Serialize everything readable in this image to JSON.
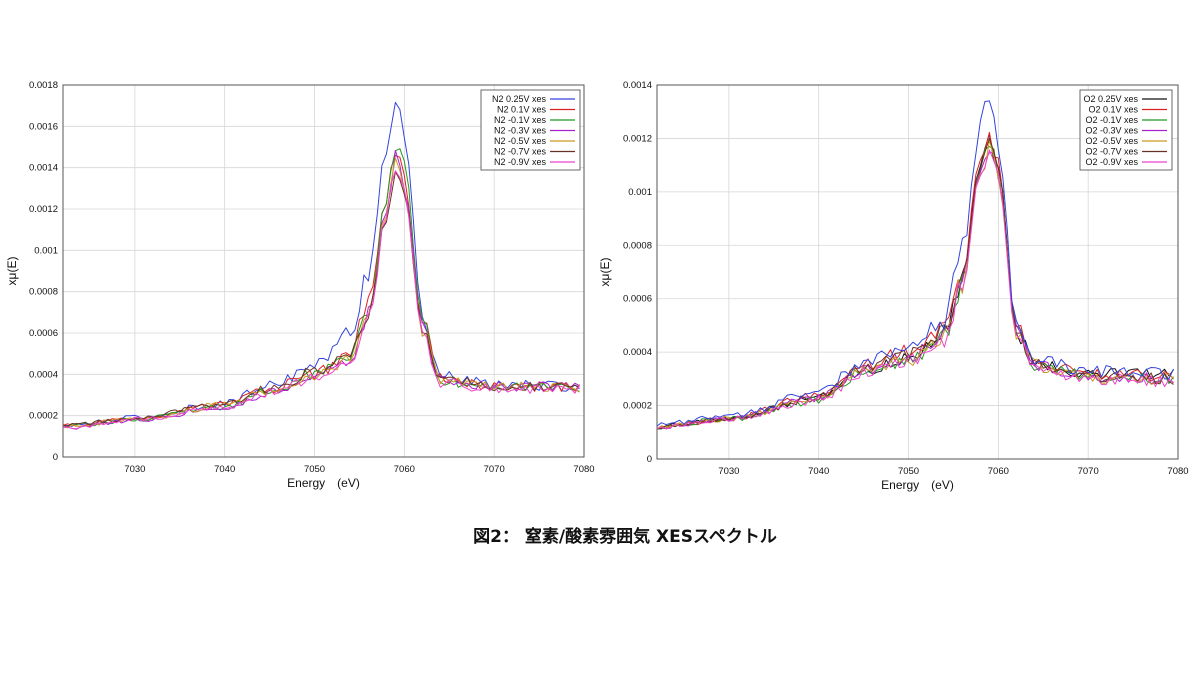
{
  "caption": "図2： 窒素/酸素雰囲気 XESスペクトル",
  "chart_data": [
    {
      "type": "line",
      "xlabel": "Energy　(eV)",
      "ylabel": "xμ(E)",
      "xlim": [
        7022,
        7080
      ],
      "ylim": [
        0,
        0.0018
      ],
      "x_ticks": [
        7030,
        7040,
        7050,
        7060,
        7070,
        7080
      ],
      "y_ticks": [
        0,
        0.0002,
        0.0004,
        0.0006,
        0.0008,
        0.001,
        0.0012,
        0.0014,
        0.0016,
        0.0018
      ],
      "x_tick_labels": [
        "7030",
        "7040",
        "7050",
        "7060",
        "7070",
        "7080"
      ],
      "y_tick_labels": [
        "0",
        "0.0002",
        "0.0004",
        "0.0006",
        "0.0008",
        "0.001",
        "0.0012",
        "0.0014",
        "0.0016",
        "0.0018"
      ],
      "grid": true,
      "legend_position": "top-right",
      "x": [
        7022,
        7030,
        7040,
        7045,
        7050,
        7054,
        7056,
        7058,
        7059,
        7060,
        7062,
        7064,
        7070,
        7079.5
      ],
      "series": [
        {
          "name": "N2 0.25V xes",
          "color": "#3344dd",
          "values": [
            0.00015,
            0.00019,
            0.00026,
            0.00035,
            0.00044,
            0.0006,
            0.0009,
            0.0015,
            0.00172,
            0.00155,
            0.0007,
            0.00039,
            0.00035,
            0.00034
          ]
        },
        {
          "name": "N2 0.1V xes",
          "color": "#dd2222",
          "values": [
            0.00015,
            0.00019,
            0.00025,
            0.00033,
            0.0004,
            0.0005,
            0.00075,
            0.00125,
            0.00148,
            0.00135,
            0.00065,
            0.00038,
            0.00034,
            0.00034
          ]
        },
        {
          "name": "N2 -0.1V xes",
          "color": "#229922",
          "values": [
            0.00015,
            0.00018,
            0.00024,
            0.00032,
            0.0004,
            0.00048,
            0.0007,
            0.00125,
            0.00152,
            0.0014,
            0.00065,
            0.00037,
            0.00034,
            0.00033
          ]
        },
        {
          "name": "N2 -0.3V xes",
          "color": "#aa22cc",
          "values": [
            0.00014,
            0.00018,
            0.00024,
            0.00031,
            0.00039,
            0.00047,
            0.00068,
            0.0012,
            0.00145,
            0.00132,
            0.00062,
            0.00037,
            0.00034,
            0.00034
          ]
        },
        {
          "name": "N2 -0.5V xes",
          "color": "#cc9922",
          "values": [
            0.00015,
            0.00018,
            0.00025,
            0.00032,
            0.00039,
            0.00047,
            0.00068,
            0.00118,
            0.00143,
            0.0013,
            0.00062,
            0.00037,
            0.00034,
            0.00034
          ]
        },
        {
          "name": "N2 -0.7V xes",
          "color": "#663322",
          "values": [
            0.00015,
            0.00019,
            0.00025,
            0.00033,
            0.00041,
            0.00049,
            0.0007,
            0.00115,
            0.00138,
            0.00127,
            0.00062,
            0.00038,
            0.00034,
            0.00034
          ]
        },
        {
          "name": "N2 -0.9V xes",
          "color": "#ee44cc",
          "values": [
            0.00014,
            0.00018,
            0.00024,
            0.00031,
            0.00038,
            0.00046,
            0.00066,
            0.00116,
            0.0014,
            0.00128,
            0.00061,
            0.00036,
            0.00033,
            0.00033
          ]
        }
      ]
    },
    {
      "type": "line",
      "xlabel": "Energy　(eV)",
      "ylabel": "xμ(E)",
      "xlim": [
        7022,
        7080
      ],
      "ylim": [
        0,
        0.0014
      ],
      "x_ticks": [
        7030,
        7040,
        7050,
        7060,
        7070,
        7080
      ],
      "y_ticks": [
        0,
        0.0002,
        0.0004,
        0.0006,
        0.0008,
        0.001,
        0.0012,
        0.0014
      ],
      "x_tick_labels": [
        "7030",
        "7040",
        "7050",
        "7060",
        "7070",
        "7080"
      ],
      "y_tick_labels": [
        "0",
        "0.0002",
        "0.0004",
        "0.0006",
        "0.0008",
        "0.001",
        "0.0012",
        "0.0014"
      ],
      "grid": true,
      "legend_position": "top-right",
      "x": [
        7022,
        7030,
        7040,
        7045,
        7050,
        7054,
        7056,
        7058,
        7059,
        7060,
        7062,
        7064,
        7070,
        7079.5
      ],
      "series": [
        {
          "name": "O2 0.25V xes",
          "color": "#111111",
          "values": [
            0.00012,
            0.00015,
            0.00023,
            0.00033,
            0.00038,
            0.00047,
            0.00068,
            0.0011,
            0.00121,
            0.00108,
            0.00048,
            0.00036,
            0.00032,
            0.00032
          ]
        },
        {
          "name": "O2 0.1V xes",
          "color": "#dd2222",
          "values": [
            0.00012,
            0.00015,
            0.00024,
            0.00035,
            0.0004,
            0.00048,
            0.0007,
            0.00112,
            0.00123,
            0.0011,
            0.00049,
            0.00036,
            0.00032,
            0.00031
          ]
        },
        {
          "name": "O2 -0.1V xes",
          "color": "#229922",
          "values": [
            0.00012,
            0.00015,
            0.00022,
            0.00033,
            0.00037,
            0.00046,
            0.00066,
            0.00108,
            0.00119,
            0.00107,
            0.00048,
            0.00035,
            0.00031,
            0.0003
          ]
        },
        {
          "name": "O2 -0.3V xes",
          "color": "#aa22cc",
          "values": [
            0.00012,
            0.00015,
            0.00023,
            0.00033,
            0.00038,
            0.00046,
            0.00067,
            0.00107,
            0.00118,
            0.00106,
            0.00047,
            0.00035,
            0.00031,
            0.0003
          ]
        },
        {
          "name": "O2 -0.5V xes",
          "color": "#cc9922",
          "values": [
            0.00012,
            0.00015,
            0.00023,
            0.00034,
            0.00037,
            0.00045,
            0.00066,
            0.00106,
            0.00117,
            0.00105,
            0.00047,
            0.00035,
            0.0003,
            0.0003
          ]
        },
        {
          "name": "O2 -0.7V xes",
          "color": "#663322",
          "values": [
            0.00012,
            0.00015,
            0.00023,
            0.00034,
            0.00039,
            0.00047,
            0.00068,
            0.00108,
            0.00119,
            0.00107,
            0.00048,
            0.00036,
            0.00031,
            0.0003
          ]
        },
        {
          "name": "O2 -0.9V xes",
          "color": "#ee44cc",
          "values": [
            0.00012,
            0.00015,
            0.00022,
            0.00032,
            0.00037,
            0.00045,
            0.00065,
            0.00105,
            0.00116,
            0.00104,
            0.00046,
            0.00034,
            0.0003,
            0.00029
          ]
        },
        {
          "name": "",
          "color": "#3344dd",
          "values": [
            0.00013,
            0.00016,
            0.00025,
            0.00036,
            0.00042,
            0.00052,
            0.00078,
            0.00125,
            0.00136,
            0.00118,
            0.0005,
            0.00037,
            0.00033,
            0.00032
          ]
        }
      ]
    }
  ]
}
